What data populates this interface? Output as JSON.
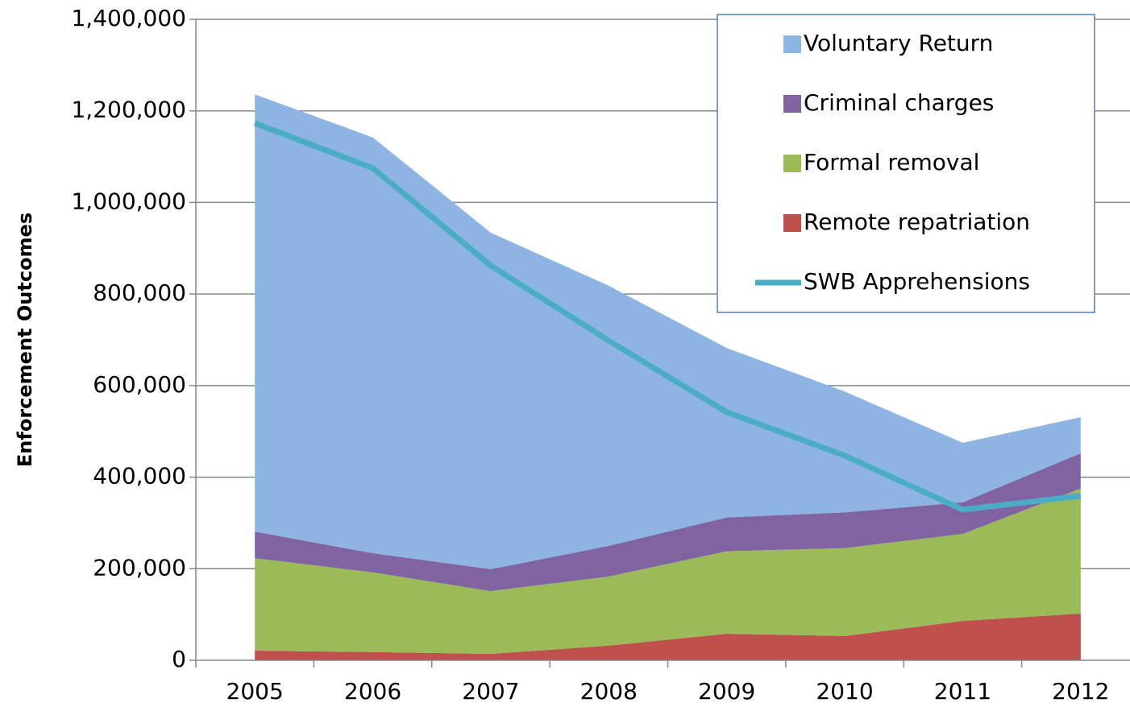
{
  "chart_data": {
    "type": "stacked_area_line",
    "y_label": "Enforcement Outcomes",
    "categories": [
      "2005",
      "2006",
      "2007",
      "2008",
      "2009",
      "2010",
      "2011",
      "2012"
    ],
    "series": [
      {
        "name": "Remote repatriation",
        "color": "#c0504d",
        "values": [
          21000,
          18000,
          14000,
          32000,
          58000,
          53000,
          86000,
          102000
        ]
      },
      {
        "name": "Formal removal",
        "color": "#9bbb59",
        "values": [
          202000,
          174000,
          137000,
          151000,
          180000,
          192000,
          190000,
          273000
        ]
      },
      {
        "name": "Criminal charges",
        "color": "#8064a2",
        "values": [
          58000,
          42000,
          48000,
          67000,
          74000,
          78000,
          69000,
          77000
        ]
      },
      {
        "name": "Voluntary Return",
        "color": "#8eb4e3",
        "values": [
          955000,
          908000,
          735000,
          568000,
          370000,
          264000,
          130000,
          79000
        ]
      }
    ],
    "line": {
      "name": "SWB Apprehensions",
      "color": "#4bacc6",
      "values": [
        1173000,
        1075000,
        862000,
        698000,
        542000,
        447000,
        329000,
        359000
      ]
    },
    "ylim": [
      0,
      1400000
    ],
    "yticks": [
      0,
      {
        "value": 200000,
        "label": "200,000"
      },
      {
        "value": 400000,
        "label": "400,000"
      },
      {
        "value": 600000,
        "label": "600,000"
      },
      {
        "value": 800000,
        "label": "800,000"
      },
      {
        "value": 1000000,
        "label": "1,000,000"
      },
      {
        "value": 1200000,
        "label": "1,200,000"
      },
      {
        "value": 1400000,
        "label": "1,400,000"
      }
    ],
    "grid": true,
    "legend": "top-right"
  }
}
